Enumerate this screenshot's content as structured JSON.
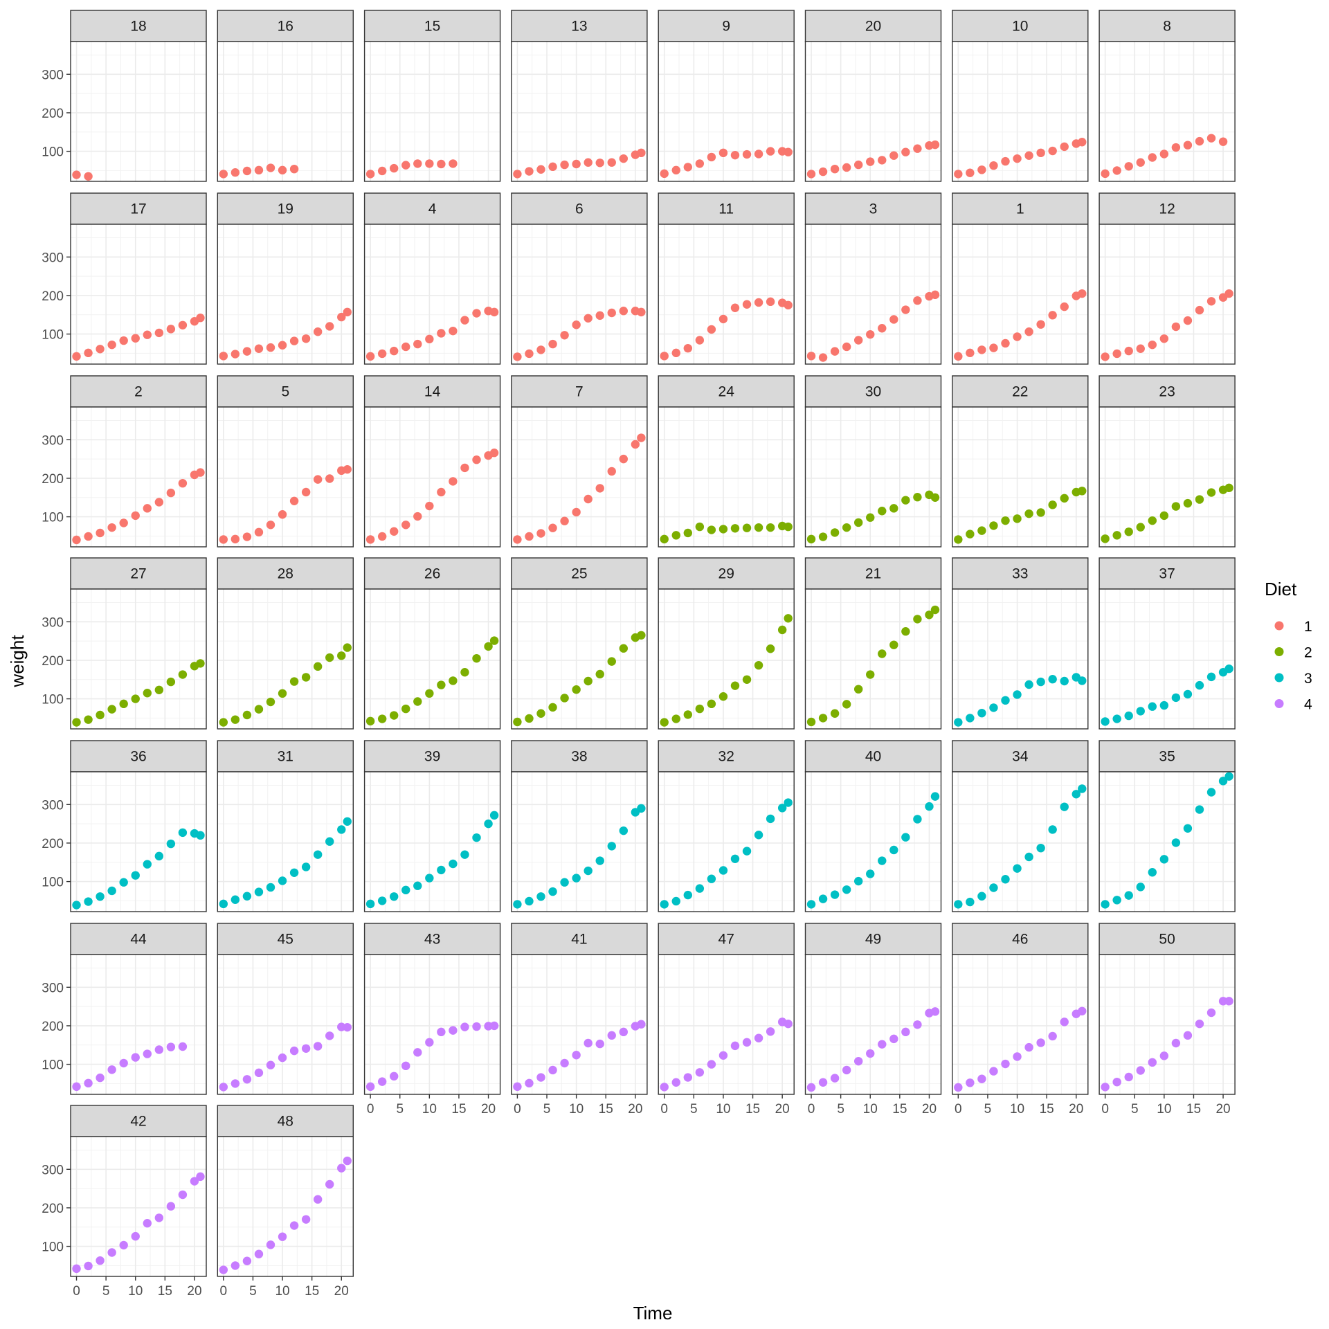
{
  "chart_data": {
    "type": "scatter",
    "facet_by": "Chick",
    "xlabel": "Time",
    "ylabel": "weight",
    "xlim": [
      -1,
      22
    ],
    "ylim": [
      22,
      385
    ],
    "x_ticks": [
      0,
      5,
      10,
      15,
      20
    ],
    "y_ticks": [
      100,
      200,
      300
    ],
    "grid": true,
    "legend": {
      "title": "Diet",
      "placement": "right",
      "entries": [
        {
          "label": "1",
          "color": "#F8766D"
        },
        {
          "label": "2",
          "color": "#7CAE00"
        },
        {
          "label": "3",
          "color": "#00BFC4"
        },
        {
          "label": "4",
          "color": "#C77CFF"
        }
      ]
    },
    "times": [
      0,
      2,
      4,
      6,
      8,
      10,
      12,
      14,
      16,
      18,
      20,
      21
    ],
    "panels": [
      {
        "label": "18",
        "diet": "1",
        "weights": [
          39,
          35
        ]
      },
      {
        "label": "16",
        "diet": "1",
        "weights": [
          41,
          45,
          49,
          51,
          57,
          51,
          54
        ]
      },
      {
        "label": "15",
        "diet": "1",
        "weights": [
          41,
          49,
          56,
          64,
          68,
          68,
          67,
          68
        ]
      },
      {
        "label": "13",
        "diet": "1",
        "weights": [
          41,
          48,
          53,
          60,
          65,
          67,
          71,
          70,
          71,
          81,
          91,
          96
        ]
      },
      {
        "label": "9",
        "diet": "1",
        "weights": [
          42,
          51,
          59,
          68,
          85,
          96,
          90,
          92,
          93,
          100,
          100,
          98
        ]
      },
      {
        "label": "20",
        "diet": "1",
        "weights": [
          41,
          47,
          54,
          58,
          65,
          73,
          77,
          89,
          98,
          107,
          115,
          117
        ]
      },
      {
        "label": "10",
        "diet": "1",
        "weights": [
          41,
          44,
          52,
          63,
          74,
          81,
          89,
          96,
          101,
          112,
          120,
          124
        ]
      },
      {
        "label": "8",
        "diet": "1",
        "weights": [
          42,
          50,
          61,
          71,
          84,
          93,
          110,
          116,
          126,
          134,
          125
        ]
      },
      {
        "label": "17",
        "diet": "1",
        "weights": [
          42,
          51,
          61,
          72,
          83,
          89,
          98,
          103,
          113,
          123,
          133,
          142
        ]
      },
      {
        "label": "19",
        "diet": "1",
        "weights": [
          43,
          48,
          55,
          62,
          65,
          71,
          82,
          88,
          106,
          120,
          144,
          157
        ]
      },
      {
        "label": "4",
        "diet": "1",
        "weights": [
          42,
          49,
          56,
          67,
          74,
          87,
          102,
          108,
          136,
          154,
          160,
          157
        ]
      },
      {
        "label": "6",
        "diet": "1",
        "weights": [
          41,
          49,
          59,
          74,
          97,
          124,
          141,
          148,
          155,
          160,
          160,
          157
        ]
      },
      {
        "label": "11",
        "diet": "1",
        "weights": [
          43,
          51,
          63,
          84,
          112,
          139,
          168,
          177,
          182,
          184,
          181,
          175
        ]
      },
      {
        "label": "3",
        "diet": "1",
        "weights": [
          43,
          39,
          55,
          67,
          84,
          99,
          115,
          138,
          163,
          187,
          198,
          202
        ]
      },
      {
        "label": "1",
        "diet": "1",
        "weights": [
          42,
          51,
          59,
          64,
          76,
          93,
          106,
          125,
          149,
          171,
          199,
          205
        ]
      },
      {
        "label": "12",
        "diet": "1",
        "weights": [
          41,
          49,
          56,
          62,
          72,
          88,
          119,
          135,
          162,
          185,
          195,
          205
        ]
      },
      {
        "label": "2",
        "diet": "1",
        "weights": [
          40,
          49,
          58,
          72,
          84,
          103,
          122,
          138,
          162,
          187,
          209,
          215
        ]
      },
      {
        "label": "5",
        "diet": "1",
        "weights": [
          41,
          42,
          48,
          60,
          79,
          106,
          141,
          164,
          197,
          199,
          220,
          223
        ]
      },
      {
        "label": "14",
        "diet": "1",
        "weights": [
          41,
          49,
          62,
          79,
          101,
          128,
          164,
          192,
          227,
          248,
          259,
          266
        ]
      },
      {
        "label": "7",
        "diet": "1",
        "weights": [
          41,
          49,
          57,
          71,
          89,
          112,
          146,
          174,
          218,
          250,
          288,
          305
        ]
      },
      {
        "label": "24",
        "diet": "2",
        "weights": [
          42,
          52,
          58,
          74,
          66,
          68,
          70,
          71,
          72,
          72,
          76,
          74
        ]
      },
      {
        "label": "30",
        "diet": "2",
        "weights": [
          42,
          48,
          59,
          72,
          85,
          98,
          115,
          122,
          143,
          151,
          157,
          150
        ]
      },
      {
        "label": "22",
        "diet": "2",
        "weights": [
          41,
          55,
          64,
          77,
          90,
          95,
          108,
          111,
          131,
          148,
          164,
          167
        ]
      },
      {
        "label": "23",
        "diet": "2",
        "weights": [
          43,
          52,
          61,
          73,
          90,
          103,
          127,
          135,
          145,
          163,
          170,
          175
        ]
      },
      {
        "label": "27",
        "diet": "2",
        "weights": [
          39,
          46,
          58,
          73,
          87,
          100,
          115,
          123,
          144,
          163,
          185,
          192
        ]
      },
      {
        "label": "28",
        "diet": "2",
        "weights": [
          39,
          46,
          58,
          73,
          92,
          114,
          145,
          156,
          184,
          207,
          212,
          233
        ]
      },
      {
        "label": "26",
        "diet": "2",
        "weights": [
          42,
          48,
          57,
          74,
          93,
          114,
          136,
          147,
          169,
          205,
          236,
          251
        ]
      },
      {
        "label": "25",
        "diet": "2",
        "weights": [
          40,
          49,
          62,
          78,
          102,
          124,
          146,
          164,
          197,
          231,
          259,
          265
        ]
      },
      {
        "label": "29",
        "diet": "2",
        "weights": [
          39,
          48,
          59,
          74,
          87,
          106,
          134,
          150,
          187,
          230,
          279,
          309
        ]
      },
      {
        "label": "21",
        "diet": "2",
        "weights": [
          40,
          50,
          62,
          86,
          125,
          163,
          217,
          240,
          275,
          307,
          318,
          331
        ]
      },
      {
        "label": "33",
        "diet": "3",
        "weights": [
          39,
          50,
          63,
          77,
          96,
          111,
          137,
          144,
          151,
          146,
          156,
          147
        ]
      },
      {
        "label": "37",
        "diet": "3",
        "weights": [
          41,
          48,
          56,
          68,
          80,
          83,
          103,
          112,
          135,
          157,
          169,
          178
        ]
      },
      {
        "label": "36",
        "diet": "3",
        "weights": [
          39,
          48,
          61,
          76,
          98,
          116,
          145,
          166,
          198,
          227,
          225,
          220
        ]
      },
      {
        "label": "31",
        "diet": "3",
        "weights": [
          42,
          53,
          62,
          73,
          85,
          102,
          123,
          138,
          170,
          204,
          235,
          256
        ]
      },
      {
        "label": "39",
        "diet": "3",
        "weights": [
          42,
          50,
          61,
          78,
          89,
          109,
          130,
          146,
          170,
          214,
          250,
          272
        ]
      },
      {
        "label": "38",
        "diet": "3",
        "weights": [
          41,
          49,
          61,
          74,
          98,
          109,
          128,
          154,
          192,
          232,
          280,
          290
        ]
      },
      {
        "label": "32",
        "diet": "3",
        "weights": [
          41,
          49,
          65,
          82,
          107,
          129,
          159,
          179,
          221,
          263,
          291,
          305
        ]
      },
      {
        "label": "40",
        "diet": "3",
        "weights": [
          41,
          55,
          66,
          79,
          101,
          120,
          154,
          182,
          215,
          262,
          295,
          321
        ]
      },
      {
        "label": "34",
        "diet": "3",
        "weights": [
          41,
          47,
          62,
          84,
          106,
          134,
          164,
          187,
          235,
          294,
          327,
          341
        ]
      },
      {
        "label": "35",
        "diet": "3",
        "weights": [
          41,
          52,
          64,
          86,
          124,
          158,
          201,
          238,
          287,
          332,
          361,
          373
        ]
      },
      {
        "label": "44",
        "diet": "4",
        "weights": [
          42,
          51,
          65,
          86,
          103,
          118,
          127,
          138,
          145,
          146
        ]
      },
      {
        "label": "45",
        "diet": "4",
        "weights": [
          41,
          50,
          61,
          78,
          98,
          117,
          135,
          141,
          147,
          174,
          197,
          196
        ]
      },
      {
        "label": "43",
        "diet": "4",
        "weights": [
          42,
          55,
          69,
          96,
          131,
          157,
          184,
          188,
          197,
          198,
          199,
          200
        ]
      },
      {
        "label": "41",
        "diet": "4",
        "weights": [
          42,
          51,
          66,
          85,
          103,
          124,
          155,
          153,
          175,
          184,
          199,
          204
        ]
      },
      {
        "label": "47",
        "diet": "4",
        "weights": [
          41,
          53,
          66,
          79,
          100,
          123,
          148,
          157,
          168,
          185,
          210,
          205
        ]
      },
      {
        "label": "49",
        "diet": "4",
        "weights": [
          40,
          53,
          64,
          85,
          108,
          128,
          152,
          166,
          184,
          203,
          233,
          237
        ]
      },
      {
        "label": "46",
        "diet": "4",
        "weights": [
          40,
          52,
          62,
          82,
          101,
          120,
          144,
          156,
          173,
          210,
          231,
          238
        ]
      },
      {
        "label": "50",
        "diet": "4",
        "weights": [
          41,
          54,
          67,
          84,
          105,
          122,
          155,
          175,
          205,
          234,
          264,
          264
        ]
      },
      {
        "label": "42",
        "diet": "4",
        "weights": [
          42,
          49,
          63,
          84,
          103,
          126,
          160,
          174,
          204,
          234,
          269,
          281
        ]
      },
      {
        "label": "48",
        "diet": "4",
        "weights": [
          39,
          50,
          62,
          80,
          104,
          125,
          154,
          170,
          222,
          261,
          303,
          322
        ]
      }
    ]
  }
}
